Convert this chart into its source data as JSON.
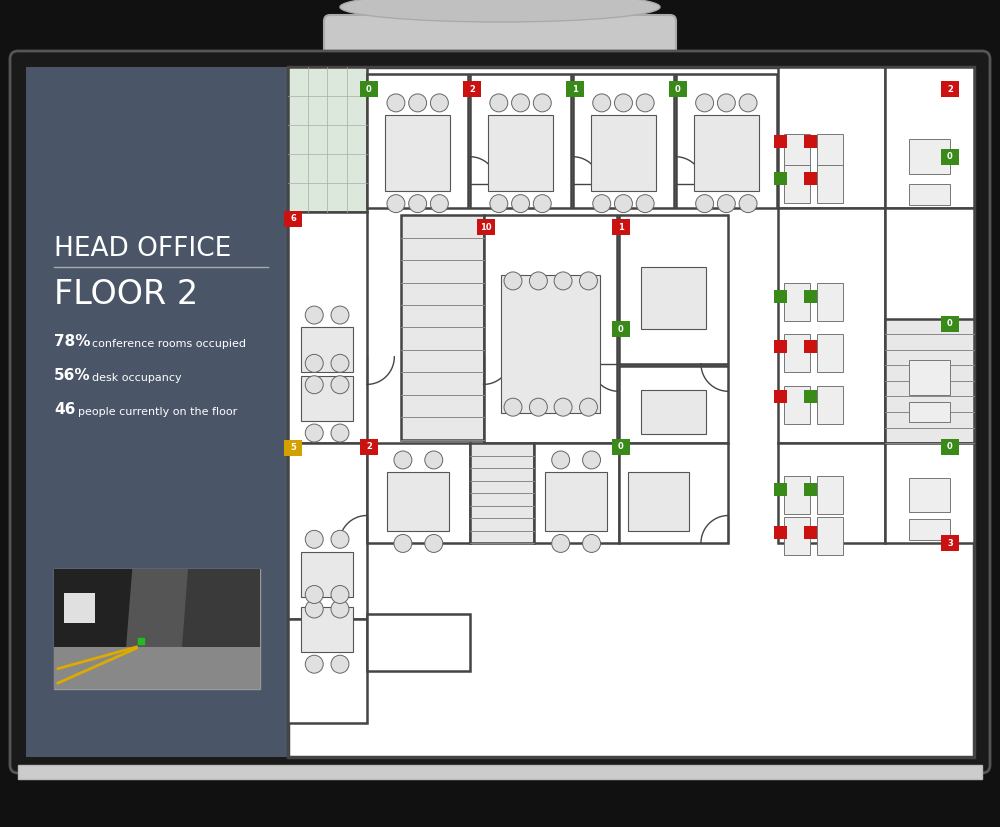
{
  "bg_color": "#111111",
  "bezel_color": "#1a1a1a",
  "bezel_edge": "#2a2a2a",
  "screen_bg": "#ffffff",
  "left_panel_color": "#4a5568",
  "floorplan_bg": "#f5f5f5",
  "stand_color": "#c8c8c8",
  "stand_base_color": "#d0d0d0",
  "title_line1": "HEAD OFFICE",
  "title_line2": "FLOOR 2",
  "stat1_bold": "78%",
  "stat1_text": "conference rooms occupied",
  "stat2_bold": "56%",
  "stat2_text": "desk occupancy",
  "stat3_bold": "46",
  "stat3_text": "people currently on the floor",
  "badge_red": "#cc1111",
  "badge_green": "#3a8a1a",
  "badge_orange": "#d4a000",
  "wall_color": "#444444",
  "room_fill": "#ffffff",
  "grid_fill": "#e0e8e0"
}
